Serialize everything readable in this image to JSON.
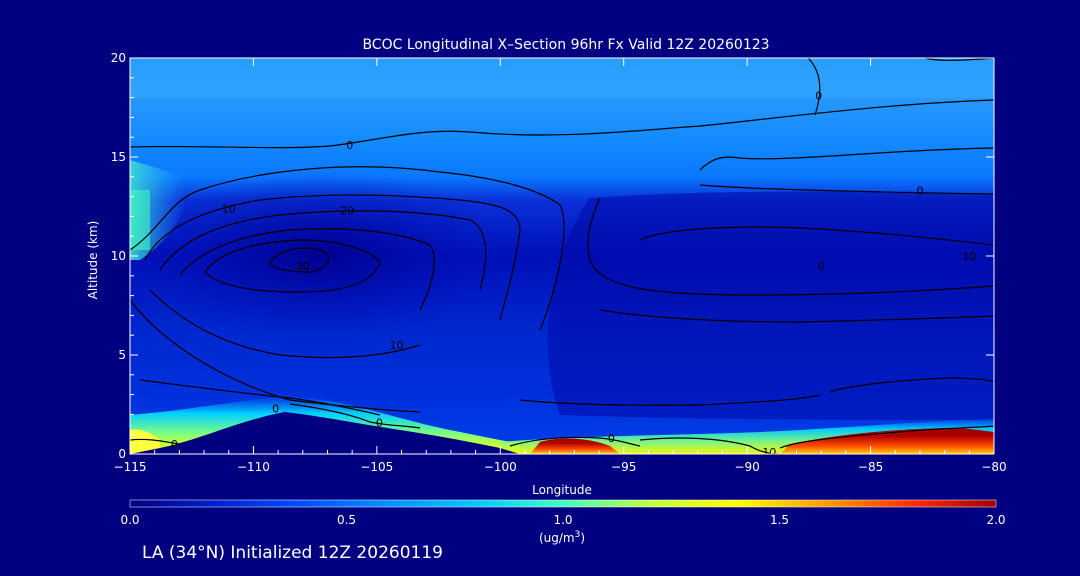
{
  "chart_data": {
    "type": "heatmap",
    "title": "BCOC Longitudinal X–Section 96hr  Fx Valid 12Z 20260123",
    "xlabel": "Longitude",
    "ylabel": "Altitude (km)",
    "xlim": [
      -115,
      -80
    ],
    "ylim": [
      0,
      20
    ],
    "x_ticks": [
      "−115",
      "−110",
      "−105",
      "−100",
      "−95",
      "−90",
      "−85",
      "−80"
    ],
    "x_tick_values": [
      -115,
      -110,
      -105,
      -100,
      -95,
      -90,
      -85,
      -80
    ],
    "y_ticks": [
      "0",
      "5",
      "10",
      "15",
      "20"
    ],
    "y_tick_values": [
      0,
      5,
      10,
      15,
      20
    ],
    "colorbar": {
      "ticks": [
        "0.0",
        "0.5",
        "1.0",
        "1.5",
        "2.0"
      ],
      "tick_values": [
        0.0,
        0.5,
        1.0,
        1.5,
        2.0
      ],
      "units_line1": "(ug/m",
      "units_sup": "3",
      "units_line2": ")",
      "colors": [
        "#000080",
        "#0020d0",
        "#0050ff",
        "#0090ff",
        "#00c8ff",
        "#40ffc0",
        "#c0ff40",
        "#ffff00",
        "#ffa000",
        "#ff3000",
        "#a00000"
      ]
    },
    "contour_labels": [
      {
        "text": "0",
        "x": -106.1,
        "y": 15.6
      },
      {
        "text": "10",
        "x": -111.0,
        "y": 12.4
      },
      {
        "text": "20",
        "x": -106.2,
        "y": 12.3
      },
      {
        "text": "30",
        "x": -108.0,
        "y": 9.5
      },
      {
        "text": "10",
        "x": -104.2,
        "y": 5.5
      },
      {
        "text": "0",
        "x": -109.1,
        "y": 2.3
      },
      {
        "text": "0",
        "x": -113.2,
        "y": 0.5
      },
      {
        "text": "0",
        "x": -104.9,
        "y": 1.6
      },
      {
        "text": "0",
        "x": -95.5,
        "y": 0.8
      },
      {
        "text": "10",
        "x": -89.1,
        "y": 0.1
      },
      {
        "text": "0",
        "x": -87.1,
        "y": 18.1
      },
      {
        "text": "0",
        "x": -83.0,
        "y": 13.3
      },
      {
        "text": "0",
        "x": -87.0,
        "y": 9.5
      },
      {
        "text": "10",
        "x": -81.0,
        "y": 10.0
      }
    ]
  },
  "footer_text": "LA (34°N) Initialized 12Z 20260119"
}
